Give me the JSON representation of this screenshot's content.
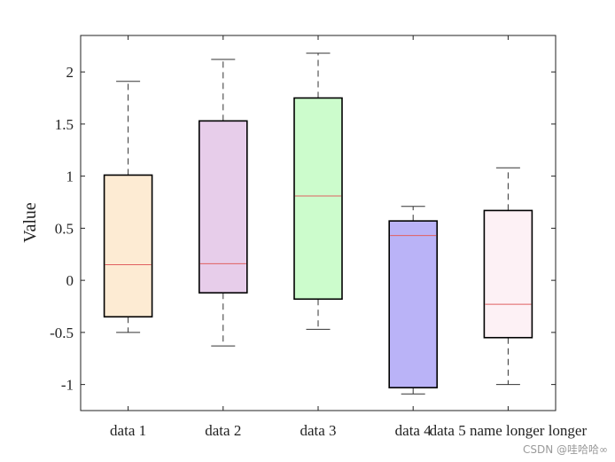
{
  "chart_data": {
    "type": "box",
    "ylabel": "Value",
    "xlabel": "",
    "ylim": [
      -1.25,
      2.35
    ],
    "yticks": [
      -1,
      -0.5,
      0,
      0.5,
      1,
      1.5,
      2
    ],
    "ytick_labels": [
      "-1",
      "-0.5",
      "0",
      "0.5",
      "1",
      "1.5",
      "2"
    ],
    "grid": false,
    "categories": [
      "data 1",
      "data 2",
      "data 3",
      "data 4",
      "data 5 name longer longer"
    ],
    "boxes": [
      {
        "category": "data 1",
        "whisker_low": -0.5,
        "q1": -0.35,
        "median": 0.15,
        "q3": 1.01,
        "whisker_high": 1.91,
        "fill": "#fdebd3"
      },
      {
        "category": "data 2",
        "whisker_low": -0.63,
        "q1": -0.12,
        "median": 0.16,
        "q3": 1.53,
        "whisker_high": 2.12,
        "fill": "#e7cdea"
      },
      {
        "category": "data 3",
        "whisker_low": -0.47,
        "q1": -0.18,
        "median": 0.81,
        "q3": 1.75,
        "whisker_high": 2.18,
        "fill": "#ccfccc"
      },
      {
        "category": "data 4",
        "whisker_low": -1.09,
        "q1": -1.03,
        "median": 0.43,
        "q3": 0.57,
        "whisker_high": 0.71,
        "fill": "#bab3f7"
      },
      {
        "category": "data 5 name longer longer",
        "whisker_low": -1.0,
        "q1": -0.55,
        "median": -0.23,
        "q3": 0.67,
        "whisker_high": 1.08,
        "fill": "#fdf1f5"
      }
    ],
    "colors": {
      "median": "#e06060",
      "box_edge": "#000000",
      "whisker": "#333333",
      "axes": "#222222"
    }
  },
  "watermark": "CSDN @哇哈哈∞"
}
